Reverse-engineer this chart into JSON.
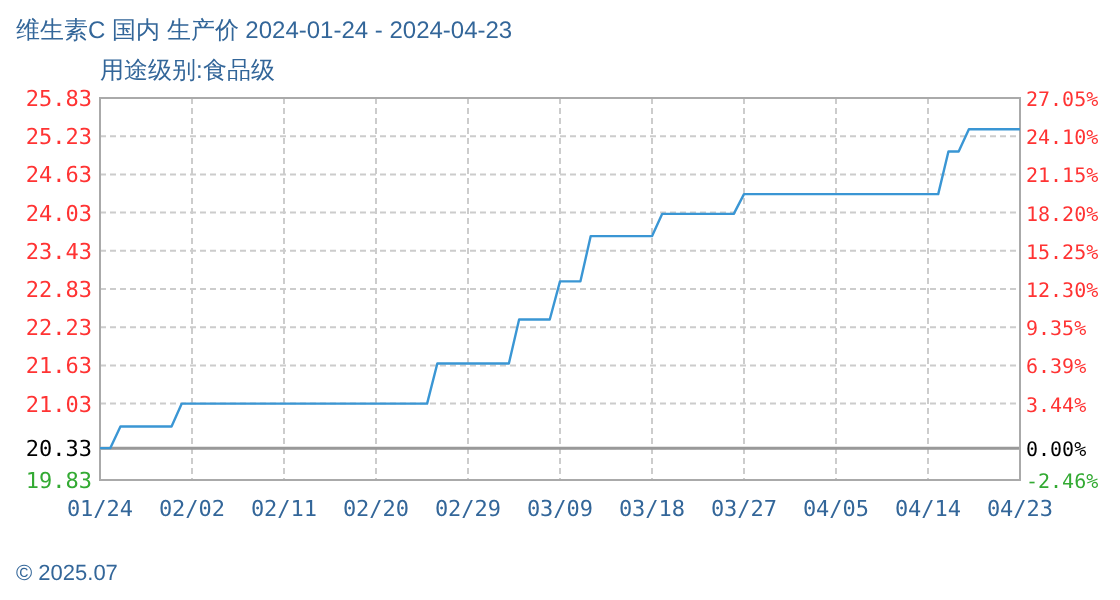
{
  "chart_data": {
    "type": "line",
    "title": "维生素C 国内 生产价 2024-01-24 - 2024-04-23",
    "subtitle": "用途级别:食品级",
    "annotations": [
      "© 2025.07"
    ],
    "x": [
      "2024-01-24",
      "2024-01-25",
      "2024-01-26",
      "2024-01-31",
      "2024-02-01",
      "2024-02-25",
      "2024-02-26",
      "2024-03-04",
      "2024-03-05",
      "2024-03-08",
      "2024-03-09",
      "2024-03-11",
      "2024-03-12",
      "2024-03-18",
      "2024-03-19",
      "2024-03-26",
      "2024-03-27",
      "2024-04-15",
      "2024-04-16",
      "2024-04-17",
      "2024-04-18",
      "2024-04-23"
    ],
    "series": [
      {
        "color": "#3a96d4",
        "values": [
          20.33,
          20.33,
          20.67,
          20.67,
          21.03,
          21.03,
          21.66,
          21.66,
          22.35,
          22.35,
          22.95,
          22.95,
          23.66,
          23.66,
          24.01,
          24.01,
          24.32,
          24.32,
          24.99,
          24.99,
          25.34,
          25.34
        ]
      }
    ],
    "xlim": [
      "2024-01-24",
      "2024-04-23"
    ],
    "xticks": [
      {
        "value": "2024-01-24",
        "label": "01/24"
      },
      {
        "value": "2024-02-02",
        "label": "02/02"
      },
      {
        "value": "2024-02-11",
        "label": "02/11"
      },
      {
        "value": "2024-02-20",
        "label": "02/20"
      },
      {
        "value": "2024-02-29",
        "label": "02/29"
      },
      {
        "value": "2024-03-09",
        "label": "03/09"
      },
      {
        "value": "2024-03-18",
        "label": "03/18"
      },
      {
        "value": "2024-03-27",
        "label": "03/27"
      },
      {
        "value": "2024-04-05",
        "label": "04/05"
      },
      {
        "value": "2024-04-14",
        "label": "04/14"
      },
      {
        "value": "2024-04-23",
        "label": "04/23"
      }
    ],
    "ylim": [
      19.83,
      25.83
    ],
    "yticks": [
      19.83,
      20.33,
      21.03,
      21.63,
      22.23,
      22.83,
      23.43,
      24.03,
      24.63,
      25.23,
      25.83
    ],
    "y2lim": [
      -2.46,
      27.05
    ],
    "y2ticks": [
      {
        "value": -2.46,
        "label": "-2.46%"
      },
      {
        "value": 0,
        "label": "0.00%"
      },
      {
        "value": 3.44,
        "label": "3.44%"
      },
      {
        "value": 6.39,
        "label": "6.39%"
      },
      {
        "value": 9.35,
        "label": "9.35%"
      },
      {
        "value": 12.3,
        "label": "12.30%"
      },
      {
        "value": 15.25,
        "label": "15.25%"
      },
      {
        "value": 18.2,
        "label": "18.20%"
      },
      {
        "value": 21.15,
        "label": "21.15%"
      },
      {
        "value": 24.1,
        "label": "24.10%"
      },
      {
        "value": 27.05,
        "label": "27.05%"
      }
    ],
    "ref_lines": [
      {
        "axis": "y2",
        "value": 0,
        "color": "#999999"
      }
    ],
    "grid": true,
    "marker": "none",
    "line_style": "solid"
  }
}
